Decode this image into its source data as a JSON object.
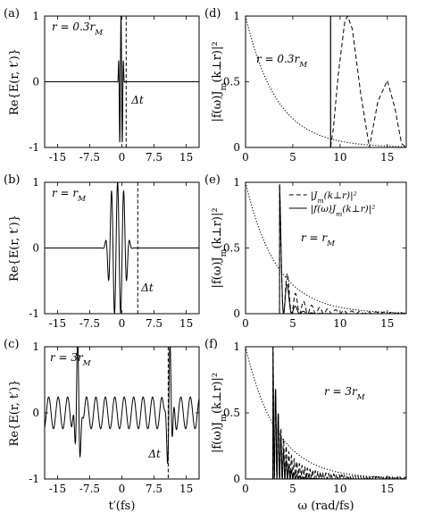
{
  "chart_data": [
    {
      "id": "a",
      "panel_label": "(a)",
      "type": "line",
      "ylabel": "Re{E(r, t′)}",
      "xlabel": "",
      "xlim": [
        -18,
        18
      ],
      "ylim": [
        -1,
        1
      ],
      "xticks": [
        "-15",
        "-7.5",
        "0",
        "7.5",
        "15"
      ],
      "xtick_values": [
        -15,
        -7.5,
        0,
        7.5,
        15
      ],
      "yticks": [
        "-1",
        "0",
        "1"
      ],
      "ytick_values": [
        -1,
        0,
        1
      ],
      "annotations": [
        "r = 0.3r_M",
        "Δt"
      ],
      "vline_x": 1,
      "series": [
        {
          "kind": "pulse",
          "style": "solid",
          "center": -0.2,
          "width": 0.55,
          "freq": 10.5,
          "amp": 1.0
        }
      ]
    },
    {
      "id": "b",
      "panel_label": "(b)",
      "type": "line",
      "ylabel": "Re{E(r, t′)}",
      "xlabel": "",
      "xlim": [
        -18,
        18
      ],
      "ylim": [
        -1,
        1
      ],
      "xticks": [
        "-15",
        "-7.5",
        "0",
        "7.5",
        "15"
      ],
      "xtick_values": [
        -15,
        -7.5,
        0,
        7.5,
        15
      ],
      "yticks": [
        "-1",
        "0",
        "1"
      ],
      "ytick_values": [
        -1,
        0,
        1
      ],
      "annotations": [
        "r = r_M",
        "Δt"
      ],
      "vline_x": 3.7,
      "series": [
        {
          "kind": "pulse",
          "style": "solid",
          "center": -1.0,
          "width": 2.3,
          "freq": 4.4,
          "amp": 1.0
        }
      ]
    },
    {
      "id": "c",
      "panel_label": "(c)",
      "type": "line",
      "ylabel": "Re{E(r, t′)}",
      "xlabel": "t′(fs)",
      "xlim": [
        -18,
        18
      ],
      "ylim": [
        -1,
        1
      ],
      "xticks": [
        "-15",
        "-7.5",
        "0",
        "7.5",
        "15"
      ],
      "xtick_values": [
        -15,
        -7.5,
        0,
        7.5,
        15
      ],
      "yticks": [
        "-1",
        "0",
        "1"
      ],
      "ytick_values": [
        -1,
        0,
        1
      ],
      "annotations": [
        "r = 3r_M",
        "Δt"
      ],
      "vline_x": 10.8,
      "series": [
        {
          "kind": "periodic",
          "style": "solid",
          "period": 2.2,
          "base_amp": 0.24,
          "spikes": [
            -10.3,
            11.2
          ],
          "spike_amp": 0.95
        }
      ]
    },
    {
      "id": "d",
      "panel_label": "(d)",
      "type": "line",
      "ylabel": "|f(ω)J_m(k⊥r)|²",
      "xlabel": "",
      "xlim": [
        0,
        17
      ],
      "ylim": [
        0,
        1
      ],
      "xticks": [
        "0",
        "5",
        "10",
        "15"
      ],
      "xtick_values": [
        0,
        5,
        10,
        15
      ],
      "yticks": [
        "0",
        "0.5",
        "1"
      ],
      "ytick_values": [
        0,
        0.5,
        1
      ],
      "annotations": [
        "r = 0.3r_M"
      ],
      "series": [
        {
          "kind": "exp",
          "style": "dotted",
          "scale": 3.3
        },
        {
          "kind": "lobes",
          "style": "dashed",
          "cutoff": 9.0,
          "points": [
            [
              9,
              0.0
            ],
            [
              9.3,
              0.15
            ],
            [
              9.8,
              0.55
            ],
            [
              10.5,
              0.96
            ],
            [
              10.8,
              1.0
            ],
            [
              11.3,
              0.9
            ],
            [
              12.2,
              0.4
            ],
            [
              13.1,
              0.0
            ],
            [
              14.0,
              0.35
            ],
            [
              15.0,
              0.51
            ],
            [
              15.8,
              0.3
            ],
            [
              16.5,
              0.03
            ],
            [
              17,
              0.0
            ]
          ]
        },
        {
          "kind": "vline",
          "style": "solid",
          "x": 9.0
        }
      ]
    },
    {
      "id": "e",
      "panel_label": "(e)",
      "type": "line",
      "ylabel": "|f(ω)J_m(k⊥r)|²",
      "xlabel": "",
      "xlim": [
        0,
        17
      ],
      "ylim": [
        0,
        1
      ],
      "xticks": [
        "0",
        "5",
        "10",
        "15"
      ],
      "xtick_values": [
        0,
        5,
        10,
        15
      ],
      "yticks": [
        "0",
        "0.5",
        "1"
      ],
      "ytick_values": [
        0,
        0.5,
        1
      ],
      "annotations": [
        "r = r_M"
      ],
      "legend": [
        "|J_m(k⊥r)|²",
        "|f(ω)J_m(k⊥r)|²"
      ],
      "series": [
        {
          "kind": "exp",
          "style": "dotted",
          "scale": 3.3
        },
        {
          "kind": "bessel",
          "style": "dashed",
          "cutoff": 3.6,
          "amp": 1.0,
          "period": 0.85,
          "decay": 0.55
        },
        {
          "kind": "bessel",
          "style": "solid",
          "cutoff": 3.6,
          "amp": 1.0,
          "period": 0.85,
          "decay": 0.55,
          "damped": true
        }
      ]
    },
    {
      "id": "f",
      "panel_label": "(f)",
      "type": "line",
      "ylabel": "|f(ω)J_m(k⊥r)|²",
      "xlabel": "ω (rad/fs)",
      "xlim": [
        0,
        17
      ],
      "ylim": [
        0,
        1
      ],
      "xticks": [
        "0",
        "5",
        "10",
        "15"
      ],
      "xtick_values": [
        0,
        5,
        10,
        15
      ],
      "yticks": [
        "0",
        "0.5",
        "1"
      ],
      "ytick_values": [
        0,
        0.5,
        1
      ],
      "annotations": [
        "r = 3r_M"
      ],
      "series": [
        {
          "kind": "exp",
          "style": "dotted",
          "scale": 3.3
        },
        {
          "kind": "bessel",
          "style": "dashed",
          "cutoff": 2.9,
          "amp": 1.0,
          "period": 0.28,
          "decay": 0.8
        },
        {
          "kind": "bessel",
          "style": "solid",
          "cutoff": 2.9,
          "amp": 1.0,
          "period": 0.28,
          "decay": 0.8,
          "damped": true
        }
      ]
    }
  ]
}
